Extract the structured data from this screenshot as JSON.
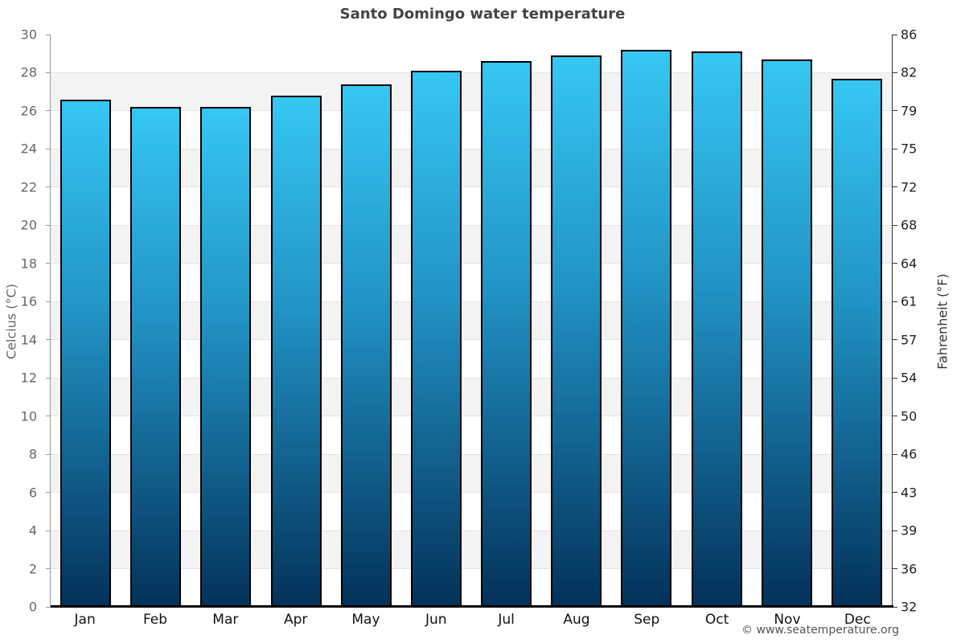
{
  "chart_data": {
    "type": "bar",
    "title": "Santo Domingo water temperature",
    "categories": [
      "Jan",
      "Feb",
      "Mar",
      "Apr",
      "May",
      "Jun",
      "Jul",
      "Aug",
      "Sep",
      "Oct",
      "Nov",
      "Dec"
    ],
    "values": [
      26.6,
      26.2,
      26.2,
      26.8,
      27.4,
      28.1,
      28.6,
      28.9,
      29.2,
      29.1,
      28.7,
      27.7
    ],
    "unit": "°C",
    "xlabel": "",
    "ylabel_left": "Celcius (°C)",
    "ylabel_right": "Fahrenheit (°F)",
    "ylim": [
      0,
      30
    ],
    "ytick_step": 2,
    "yticks_celsius": [
      0,
      2,
      4,
      6,
      8,
      10,
      12,
      14,
      16,
      18,
      20,
      22,
      24,
      26,
      28,
      30
    ],
    "yticks_fahrenheit": [
      32,
      36,
      39,
      43,
      46,
      50,
      54,
      57,
      61,
      64,
      68,
      72,
      75,
      79,
      82,
      86
    ],
    "grid": "horizontal gridlines every 2°C with alternating white and light-gray bands",
    "legend": "none"
  },
  "footer": {
    "copyright": "© www.seatemperature.org"
  },
  "colors": {
    "bar_gradient_top": "#36c7f3",
    "bar_gradient_mid": "#2193c5",
    "bar_gradient_bottom": "#033159",
    "bar_border": "#000000",
    "band_gray": "#f3f3f3",
    "gridline": "#e3e3e3",
    "left_spine": "#999999",
    "right_spine": "#333333",
    "baseline": "#000000",
    "title_text": "#444444",
    "left_tick_text": "#666666",
    "right_tick_text": "#222222",
    "month_text": "#111111",
    "footer_text": "#555555"
  }
}
